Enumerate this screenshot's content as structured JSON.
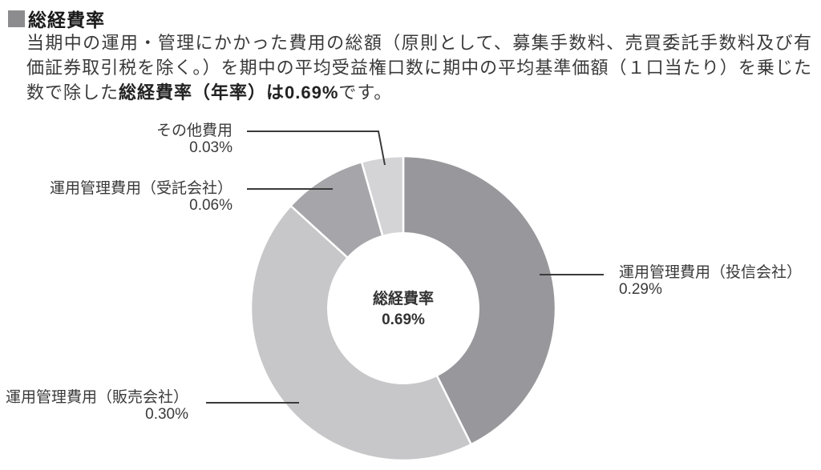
{
  "header": {
    "title": "総経費率"
  },
  "paragraph": {
    "seg1": "当期中の運用・管理にかかった費用の総額（原則として、募集手数料、売買委託手数料及び有価証券取引税を除く。）を期中の平均受益権口数に期中の平均基準価額（１口当たり）を乗じた数で除した",
    "seg2_bold": "総経費率（年率）は0.69%",
    "seg3": "です。"
  },
  "colors": {
    "header_square": "#8c8c8e",
    "text": "#3a3a3a",
    "leader_line": "#3a3a3a",
    "slice_divider": "#ffffff"
  },
  "chart_data": {
    "type": "pie",
    "donut": true,
    "title": "総経費率",
    "center_label": {
      "line1": "総経費率",
      "line2": "0.69%"
    },
    "total_display": "0.69%",
    "start_angle_deg": 0,
    "direction": "clockwise",
    "slices": [
      {
        "label": "運用管理費用（投信会社）",
        "value": 0.29,
        "display": "0.29%",
        "color": "#98989c"
      },
      {
        "label": "運用管理費用（販売会社）",
        "value": 0.3,
        "display": "0.30%",
        "color": "#c7c7c9"
      },
      {
        "label": "運用管理費用（受託会社）",
        "value": 0.06,
        "display": "0.06%",
        "color": "#a6a6aa"
      },
      {
        "label": "その他費用",
        "value": 0.03,
        "display": "0.03%",
        "color": "#d4d4d6"
      }
    ]
  }
}
